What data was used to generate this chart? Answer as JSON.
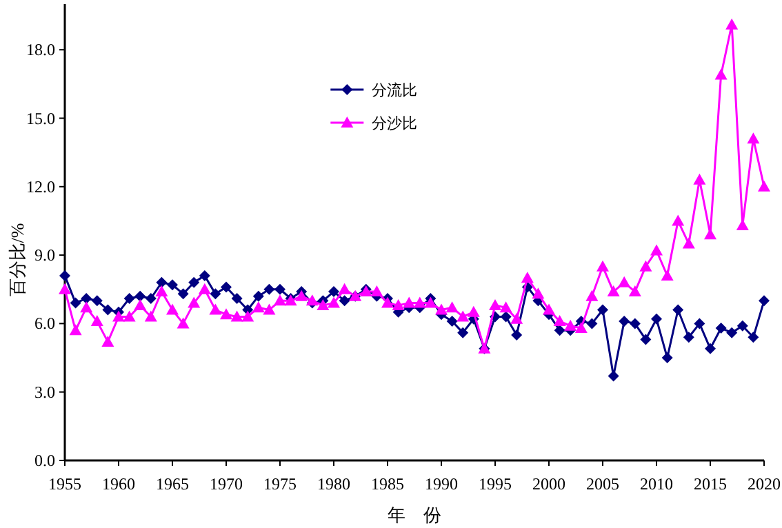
{
  "chart_data": {
    "type": "line",
    "xlabel": "年　份",
    "ylabel": "百分比/%",
    "x": [
      1955,
      1956,
      1957,
      1958,
      1959,
      1960,
      1961,
      1962,
      1963,
      1964,
      1965,
      1966,
      1967,
      1968,
      1969,
      1970,
      1971,
      1972,
      1973,
      1974,
      1975,
      1976,
      1977,
      1978,
      1979,
      1980,
      1981,
      1982,
      1983,
      1984,
      1985,
      1986,
      1987,
      1988,
      1989,
      1990,
      1991,
      1992,
      1993,
      1994,
      1995,
      1996,
      1997,
      1998,
      1999,
      2000,
      2001,
      2002,
      2003,
      2004,
      2005,
      2006,
      2007,
      2008,
      2009,
      2010,
      2011,
      2012,
      2013,
      2014,
      2015,
      2016,
      2017,
      2018,
      2019,
      2020
    ],
    "series": [
      {
        "name": "分流比",
        "color": "#000080",
        "marker": "diamond",
        "values": [
          8.1,
          6.9,
          7.1,
          7.0,
          6.6,
          6.5,
          7.1,
          7.2,
          7.1,
          7.8,
          7.7,
          7.3,
          7.8,
          8.1,
          7.3,
          7.6,
          7.1,
          6.6,
          7.2,
          7.5,
          7.5,
          7.1,
          7.4,
          6.9,
          7.0,
          7.4,
          7.0,
          7.2,
          7.5,
          7.2,
          7.1,
          6.5,
          6.7,
          6.7,
          7.1,
          6.4,
          6.1,
          5.6,
          6.2,
          4.9,
          6.3,
          6.3,
          5.5,
          7.6,
          7.0,
          6.4,
          5.7,
          5.7,
          6.1,
          6.0,
          6.6,
          3.7,
          6.1,
          6.0,
          5.3,
          6.2,
          4.5,
          6.6,
          5.4,
          6.0,
          4.9,
          5.8,
          5.6,
          5.9,
          5.4,
          7.0
        ]
      },
      {
        "name": "分沙比",
        "color": "#ff00ff",
        "marker": "triangle",
        "values": [
          7.5,
          5.7,
          6.7,
          6.1,
          5.2,
          6.3,
          6.3,
          6.8,
          6.3,
          7.4,
          6.6,
          6.0,
          6.9,
          7.5,
          6.6,
          6.4,
          6.3,
          6.3,
          6.7,
          6.6,
          7.0,
          7.0,
          7.2,
          7.0,
          6.8,
          6.9,
          7.5,
          7.2,
          7.4,
          7.4,
          6.9,
          6.8,
          6.9,
          6.9,
          6.9,
          6.6,
          6.7,
          6.3,
          6.5,
          4.9,
          6.8,
          6.7,
          6.2,
          8.0,
          7.3,
          6.6,
          6.1,
          5.9,
          5.8,
          7.2,
          8.5,
          7.4,
          7.8,
          7.4,
          8.5,
          9.2,
          8.1,
          10.5,
          9.5,
          12.3,
          9.9,
          16.9,
          19.1,
          10.3,
          14.1,
          12.0
        ]
      }
    ],
    "xlim": [
      1955,
      2020
    ],
    "xticks": [
      1955,
      1960,
      1965,
      1970,
      1975,
      1980,
      1985,
      1990,
      1995,
      2000,
      2005,
      2010,
      2015,
      2020
    ],
    "ylim": [
      0,
      20
    ],
    "yticks": [
      {
        "value": 0,
        "label": "0.0"
      },
      {
        "value": 3,
        "label": "3.0"
      },
      {
        "value": 6,
        "label": "6.0"
      },
      {
        "value": 9,
        "label": "9.0"
      },
      {
        "value": 12,
        "label": "12.0"
      },
      {
        "value": 15,
        "label": "15.0"
      },
      {
        "value": 18,
        "label": "18.0"
      }
    ],
    "grid": false,
    "legend": "top left",
    "line_style": "solid"
  }
}
